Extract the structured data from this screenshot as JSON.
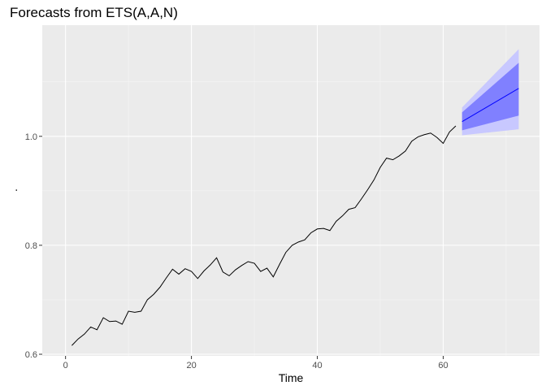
{
  "chart_data": {
    "type": "line",
    "title": "Forecasts from ETS(A,A,N)",
    "xlabel": "Time",
    "ylabel": ".",
    "xlim": [
      -3.7,
      75.3
    ],
    "ylim": [
      0.597,
      1.204
    ],
    "x_ticks": [
      0,
      20,
      40,
      60
    ],
    "y_ticks": [
      0.6,
      0.8,
      1.0
    ],
    "y_tick_labels": [
      "0.6",
      "0.8",
      "1.0"
    ],
    "grid": true,
    "colors": {
      "panel_background": "#ebebeb",
      "grid_major": "#ffffff",
      "grid_minor": "#f5f5f5",
      "observed_line": "#000000",
      "forecast_line": "#0000ff",
      "band_80": "#8080ff",
      "band_95": "#c8c8ff"
    },
    "series": [
      {
        "name": "",
        "x": [
          1,
          2,
          3,
          4,
          5,
          6,
          7,
          8,
          9,
          10,
          11,
          12,
          13,
          14,
          15,
          16,
          17,
          18,
          19,
          20,
          21,
          22,
          23,
          24,
          25,
          26,
          27,
          28,
          29,
          30,
          31,
          32,
          33,
          34,
          35,
          36,
          37,
          38,
          39,
          40,
          41,
          42,
          43,
          44,
          45,
          46,
          47,
          48,
          49,
          50,
          51,
          52,
          53,
          54,
          55,
          56,
          57,
          58,
          59,
          60,
          61,
          62
        ],
        "y": [
          0.616,
          0.628,
          0.637,
          0.65,
          0.645,
          0.667,
          0.66,
          0.661,
          0.655,
          0.679,
          0.677,
          0.679,
          0.7,
          0.71,
          0.723,
          0.74,
          0.756,
          0.747,
          0.757,
          0.752,
          0.739,
          0.753,
          0.764,
          0.777,
          0.751,
          0.744,
          0.755,
          0.763,
          0.77,
          0.767,
          0.752,
          0.758,
          0.742,
          0.765,
          0.787,
          0.8,
          0.806,
          0.81,
          0.823,
          0.83,
          0.831,
          0.827,
          0.844,
          0.854,
          0.866,
          0.869,
          0.885,
          0.902,
          0.92,
          0.943,
          0.96,
          0.957,
          0.964,
          0.973,
          0.991,
          0.999,
          1.003,
          1.006,
          0.998,
          0.987,
          1.008,
          1.019
        ]
      }
    ],
    "forecast": {
      "x": [
        63,
        72
      ],
      "mean": [
        1.027,
        1.088
      ],
      "lo80": [
        1.011,
        1.038
      ],
      "hi80": [
        1.044,
        1.135
      ],
      "lo95": [
        1.002,
        1.013
      ],
      "hi95": [
        1.053,
        1.16
      ]
    }
  }
}
